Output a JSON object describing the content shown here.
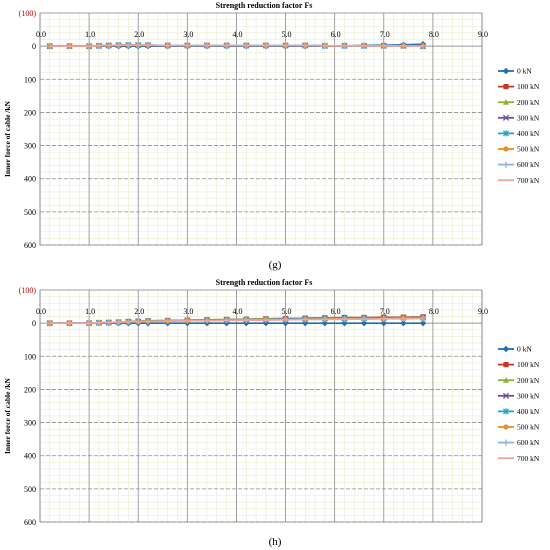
{
  "panels": [
    {
      "caption": "(g)",
      "chart_data": {
        "type": "line",
        "title": "Strength reduction factor Fs",
        "ylabel": "Inner force of cable /kN",
        "xlabel": "",
        "xlim": [
          0,
          9
        ],
        "ylim": [
          -100,
          600
        ],
        "y_axis_inverted": true,
        "x_ticks": [
          "0.0",
          "1.0",
          "2.0",
          "3.0",
          "4.0",
          "5.0",
          "6.0",
          "7.0",
          "8.0",
          "9.0"
        ],
        "y_ticks": [
          "(100)",
          "0",
          "100",
          "200",
          "300",
          "400",
          "500",
          "600"
        ],
        "grid": true,
        "legend_position": "right",
        "series": [
          {
            "name": "0 kN",
            "color": "#1f6fb4",
            "marker": "diamond",
            "x": [
              0.2,
              0.6,
              1.0,
              1.2,
              1.4,
              1.6,
              1.8,
              2.0,
              2.2,
              2.6,
              3.0,
              3.4,
              3.8,
              4.2,
              4.6,
              5.0,
              5.4,
              5.8,
              6.2,
              6.6,
              7.0,
              7.4,
              7.8
            ],
            "y": [
              0,
              0,
              0,
              0,
              0,
              0,
              0,
              0,
              0,
              0,
              0,
              0,
              0,
              0,
              0,
              0,
              0,
              0,
              -1,
              -2,
              -3,
              -4,
              -6
            ]
          },
          {
            "name": "100 kN",
            "color": "#c0392b",
            "marker": "square",
            "x": [
              0.2,
              0.6,
              1.0,
              1.2,
              1.4,
              1.6,
              1.8,
              2.0,
              2.2,
              2.6,
              3.0,
              3.4,
              3.8,
              4.2,
              4.6,
              5.0,
              5.4,
              5.8,
              6.2,
              6.6,
              7.0,
              7.4,
              7.8
            ],
            "y": [
              0,
              0,
              0,
              -1,
              -2,
              -3,
              -3,
              -3,
              -3,
              -2,
              -2,
              -2,
              -2,
              -2,
              -2,
              -2,
              -2,
              -1,
              -1,
              -1,
              -1,
              -1,
              0
            ]
          },
          {
            "name": "200 kN",
            "color": "#8bb33c",
            "marker": "triangle",
            "x": [
              0.2,
              0.6,
              1.0,
              1.2,
              1.4,
              1.6,
              1.8,
              2.0,
              2.2,
              2.6,
              3.0,
              3.4,
              3.8,
              4.2,
              4.6,
              5.0,
              5.4,
              5.8,
              6.2,
              6.6,
              7.0,
              7.4,
              7.8
            ],
            "y": [
              0,
              0,
              0,
              -1,
              -2,
              -3,
              -3,
              -3,
              -3,
              -2,
              -2,
              -2,
              -2,
              -2,
              -2,
              -2,
              -2,
              -1,
              -1,
              -1,
              -1,
              -1,
              0
            ]
          },
          {
            "name": "300 kN",
            "color": "#7a4a9e",
            "marker": "x",
            "x": [
              0.2,
              0.6,
              1.0,
              1.2,
              1.4,
              1.6,
              1.8,
              2.0,
              2.2,
              2.6,
              3.0,
              3.4,
              3.8,
              4.2,
              4.6,
              5.0,
              5.4,
              5.8,
              6.2,
              6.6,
              7.0,
              7.4,
              7.8
            ],
            "y": [
              0,
              0,
              0,
              -1,
              -2,
              -3,
              -3,
              -3,
              -3,
              -2,
              -2,
              -2,
              -2,
              -2,
              -2,
              -2,
              -2,
              -1,
              -1,
              -1,
              -1,
              -1,
              0
            ]
          },
          {
            "name": "400 kN",
            "color": "#2aa6c0",
            "marker": "star",
            "x": [
              0.2,
              0.6,
              1.0,
              1.2,
              1.4,
              1.6,
              1.8,
              2.0,
              2.2,
              2.6,
              3.0,
              3.4,
              3.8,
              4.2,
              4.6,
              5.0,
              5.4,
              5.8,
              6.2,
              6.6,
              7.0,
              7.4,
              7.8
            ],
            "y": [
              0,
              0,
              0,
              -1,
              -2,
              -3,
              -3,
              -3,
              -3,
              -2,
              -2,
              -2,
              -2,
              -2,
              -2,
              -2,
              -2,
              -1,
              -1,
              -1,
              -1,
              -1,
              0
            ]
          },
          {
            "name": "500 kN",
            "color": "#f08a24",
            "marker": "circle",
            "x": [
              0.2,
              0.6,
              1.0,
              1.2,
              1.4,
              1.6,
              1.8,
              2.0,
              2.2,
              2.6,
              3.0,
              3.4,
              3.8,
              4.2,
              4.6,
              5.0,
              5.4,
              5.8,
              6.2,
              6.6,
              7.0,
              7.4,
              7.8
            ],
            "y": [
              0,
              0,
              0,
              -1,
              -2,
              -3,
              -3,
              -3,
              -3,
              -2,
              -2,
              -2,
              -2,
              -2,
              -2,
              -2,
              -2,
              -1,
              -1,
              -1,
              -1,
              -1,
              0
            ]
          },
          {
            "name": "600 kN",
            "color": "#8fb4dc",
            "marker": "plus",
            "x": [
              0.2,
              0.6,
              1.0,
              1.2,
              1.4,
              1.6,
              1.8,
              2.0,
              2.2,
              2.6,
              3.0,
              3.4,
              3.8,
              4.2,
              4.6,
              5.0,
              5.4,
              5.8,
              6.2,
              6.6,
              7.0,
              7.4,
              7.8
            ],
            "y": [
              0,
              0,
              0,
              -1,
              -2,
              -3,
              -3,
              -3,
              -3,
              -2,
              -2,
              -2,
              -2,
              -2,
              -2,
              -2,
              -2,
              -1,
              -1,
              -1,
              -1,
              -1,
              0
            ]
          },
          {
            "name": "700 kN",
            "color": "#f2a39b",
            "marker": "none",
            "x": [
              0.2,
              0.6,
              1.0,
              1.2,
              1.4,
              1.6,
              1.8,
              2.0,
              2.2,
              2.6,
              3.0,
              3.4,
              3.8,
              4.2,
              4.6,
              5.0,
              5.4,
              5.8,
              6.2,
              6.6,
              7.0,
              7.4,
              7.8
            ],
            "y": [
              0,
              0,
              0,
              -1,
              -2,
              -3,
              -3,
              -3,
              -3,
              -2,
              -2,
              -2,
              -2,
              -2,
              -2,
              -2,
              -2,
              -1,
              -1,
              -1,
              -1,
              -1,
              0
            ]
          }
        ]
      }
    },
    {
      "caption": "(h)",
      "chart_data": {
        "type": "line",
        "title": "Strength reduction factor Fs",
        "ylabel": "Inner force of cable /kN",
        "xlabel": "",
        "xlim": [
          0,
          9
        ],
        "ylim": [
          -100,
          600
        ],
        "y_axis_inverted": true,
        "x_ticks": [
          "0.0",
          "1.0",
          "2.0",
          "3.0",
          "4.0",
          "5.0",
          "6.0",
          "7.0",
          "8.0",
          "9.0"
        ],
        "y_ticks": [
          "(100)",
          "0",
          "100",
          "200",
          "300",
          "400",
          "500",
          "600"
        ],
        "grid": true,
        "legend_position": "right",
        "series": [
          {
            "name": "0 kN",
            "color": "#1f6fb4",
            "marker": "diamond",
            "x": [
              0.2,
              0.6,
              1.0,
              1.2,
              1.4,
              1.6,
              1.8,
              2.0,
              2.2,
              2.6,
              3.0,
              3.4,
              3.8,
              4.2,
              4.6,
              5.0,
              5.4,
              5.8,
              6.2,
              6.6,
              7.0,
              7.4,
              7.8
            ],
            "y": [
              0,
              0,
              0,
              0,
              0,
              0,
              0,
              0,
              0,
              0,
              0,
              0,
              0,
              0,
              0,
              0,
              0,
              0,
              0,
              0,
              0,
              0,
              0
            ]
          },
          {
            "name": "100 kN",
            "color": "#c0392b",
            "marker": "square",
            "x": [
              0.2,
              0.6,
              1.0,
              1.2,
              1.4,
              1.6,
              1.8,
              2.0,
              2.2,
              2.6,
              3.0,
              3.4,
              3.8,
              4.2,
              4.6,
              5.0,
              5.4,
              5.8,
              6.2,
              6.6,
              7.0,
              7.4,
              7.8
            ],
            "y": [
              0,
              0,
              0,
              -1,
              -2,
              -3,
              -5,
              -6,
              -7,
              -8,
              -9,
              -10,
              -11,
              -12,
              -13,
              -14,
              -15,
              -16,
              -17,
              -17,
              -18,
              -18,
              -19
            ]
          },
          {
            "name": "200 kN",
            "color": "#8bb33c",
            "marker": "triangle",
            "x": [
              0.2,
              0.6,
              1.0,
              1.2,
              1.4,
              1.6,
              1.8,
              2.0,
              2.2,
              2.6,
              3.0,
              3.4,
              3.8,
              4.2,
              4.6,
              5.0,
              5.4,
              5.8,
              6.2,
              6.6,
              7.0,
              7.4,
              7.8
            ],
            "y": [
              0,
              0,
              0,
              -1,
              -2,
              -3,
              -5,
              -6,
              -7,
              -8,
              -9,
              -10,
              -11,
              -12,
              -13,
              -14,
              -15,
              -16,
              -16,
              -17,
              -17,
              -18,
              -18
            ]
          },
          {
            "name": "300 kN",
            "color": "#7a4a9e",
            "marker": "x",
            "x": [
              0.2,
              0.6,
              1.0,
              1.2,
              1.4,
              1.6,
              1.8,
              2.0,
              2.2,
              2.6,
              3.0,
              3.4,
              3.8,
              4.2,
              4.6,
              5.0,
              5.4,
              5.8,
              6.2,
              6.6,
              7.0,
              7.4,
              7.8
            ],
            "y": [
              0,
              0,
              0,
              -1,
              -2,
              -3,
              -4,
              -5,
              -6,
              -7,
              -8,
              -9,
              -10,
              -11,
              -12,
              -13,
              -14,
              -15,
              -15,
              -16,
              -16,
              -17,
              -17
            ]
          },
          {
            "name": "400 kN",
            "color": "#2aa6c0",
            "marker": "star",
            "x": [
              0.2,
              0.6,
              1.0,
              1.2,
              1.4,
              1.6,
              1.8,
              2.0,
              2.2,
              2.6,
              3.0,
              3.4,
              3.8,
              4.2,
              4.6,
              5.0,
              5.4,
              5.8,
              6.2,
              6.6,
              7.0,
              7.4,
              7.8
            ],
            "y": [
              0,
              0,
              0,
              -1,
              -2,
              -3,
              -4,
              -5,
              -6,
              -7,
              -8,
              -9,
              -10,
              -11,
              -12,
              -12,
              -13,
              -14,
              -14,
              -15,
              -15,
              -16,
              -16
            ]
          },
          {
            "name": "500 kN",
            "color": "#f08a24",
            "marker": "circle",
            "x": [
              0.2,
              0.6,
              1.0,
              1.2,
              1.4,
              1.6,
              1.8,
              2.0,
              2.2,
              2.6,
              3.0,
              3.4,
              3.8,
              4.2,
              4.6,
              5.0,
              5.4,
              5.8,
              6.2,
              6.6,
              7.0,
              7.4,
              7.8
            ],
            "y": [
              0,
              0,
              0,
              -1,
              -2,
              -3,
              -4,
              -5,
              -6,
              -7,
              -8,
              -8,
              -9,
              -10,
              -11,
              -11,
              -12,
              -13,
              -13,
              -14,
              -14,
              -15,
              -15
            ]
          },
          {
            "name": "600 kN",
            "color": "#8fb4dc",
            "marker": "plus",
            "x": [
              0.2,
              0.6,
              1.0,
              1.2,
              1.4,
              1.6,
              1.8,
              2.0,
              2.2,
              2.6,
              3.0,
              3.4,
              3.8,
              4.2,
              4.6,
              5.0,
              5.4,
              5.8,
              6.2,
              6.6,
              7.0,
              7.4,
              7.8
            ],
            "y": [
              0,
              0,
              0,
              -1,
              -2,
              -3,
              -4,
              -5,
              -5,
              -6,
              -7,
              -8,
              -9,
              -9,
              -10,
              -11,
              -11,
              -12,
              -12,
              -13,
              -13,
              -14,
              -14
            ]
          },
          {
            "name": "700 kN",
            "color": "#f2a39b",
            "marker": "none",
            "x": [
              0.2,
              0.6,
              1.0,
              1.2,
              1.4,
              1.6,
              1.8,
              2.0,
              2.2,
              2.6,
              3.0,
              3.4,
              3.8,
              4.2,
              4.6,
              5.0,
              5.4,
              5.8,
              6.2,
              6.6,
              7.0,
              7.4,
              7.8
            ],
            "y": [
              0,
              0,
              0,
              -1,
              -2,
              -3,
              -4,
              -4,
              -5,
              -6,
              -7,
              -7,
              -8,
              -9,
              -9,
              -10,
              -11,
              -11,
              -12,
              -12,
              -13,
              -13,
              -14
            ]
          }
        ]
      }
    }
  ]
}
